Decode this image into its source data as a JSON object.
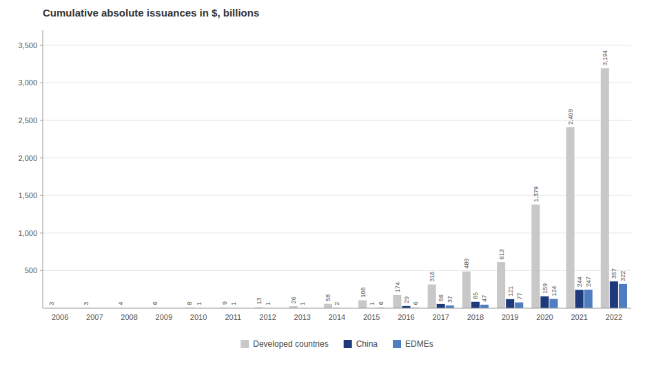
{
  "chart_data": {
    "type": "bar",
    "title": "Cumulative absolute issuances in $, billions",
    "categories": [
      "2006",
      "2007",
      "2008",
      "2009",
      "2010",
      "2011",
      "2012",
      "2013",
      "2014",
      "2015",
      "2016",
      "2017",
      "2018",
      "2019",
      "2020",
      "2021",
      "2022"
    ],
    "series": [
      {
        "name": "Developed countries",
        "color": "#c8c8c8",
        "values": [
          3,
          3,
          4,
          6,
          8,
          9,
          13,
          26,
          58,
          106,
          174,
          316,
          489,
          613,
          1379,
          2409,
          3194
        ],
        "value_labels": [
          "3",
          "3",
          "4",
          "6",
          "8",
          "9",
          "13",
          "26",
          "58",
          "106",
          "174",
          "316",
          "489",
          "613",
          "1,379",
          "2,409",
          "3,194"
        ]
      },
      {
        "name": "China",
        "color": "#1e3a7a",
        "values": [
          0,
          0,
          0,
          0,
          1,
          1,
          1,
          1,
          2,
          1,
          29,
          56,
          85,
          121,
          159,
          244,
          357
        ],
        "value_labels": [
          null,
          null,
          null,
          null,
          "1",
          "1",
          "1",
          "1",
          "2",
          "1",
          "29",
          "56",
          "85",
          "121",
          "159",
          "244",
          "357"
        ]
      },
      {
        "name": "EDMEs",
        "color": "#4e7ec0",
        "values": [
          0,
          0,
          0,
          0,
          0,
          0,
          0,
          0,
          0,
          6,
          6,
          37,
          47,
          77,
          124,
          247,
          322
        ],
        "value_labels": [
          null,
          null,
          null,
          null,
          null,
          null,
          null,
          null,
          null,
          "6",
          "6",
          "37",
          "47",
          "77",
          "124",
          "247",
          "322"
        ]
      }
    ],
    "ylim": [
      0,
      3700
    ],
    "yticks": [
      500,
      {
        "value": 1000,
        "label": "1,000"
      },
      {
        "value": 1500,
        "label": "1,500"
      },
      {
        "value": 2000,
        "label": "2,000"
      },
      {
        "value": 2500,
        "label": "2,500"
      },
      {
        "value": 3000,
        "label": "3,000"
      },
      {
        "value": 3500,
        "label": "3,500"
      }
    ],
    "grid": true,
    "legend": "bottom",
    "data_labels": true
  }
}
